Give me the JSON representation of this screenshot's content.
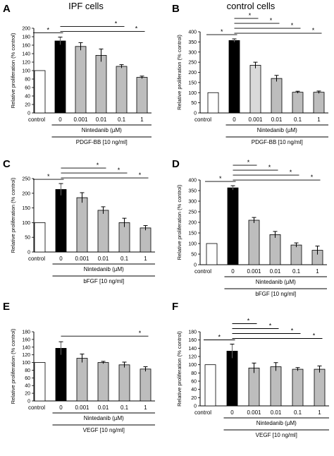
{
  "column_titles": [
    "IPF cells",
    "control cells"
  ],
  "chart_data": [
    {
      "type": "bar",
      "panel": "A",
      "categories": [
        "control",
        "0",
        "0.001",
        "0.01",
        "0.1",
        "1"
      ],
      "values": [
        100,
        170,
        157,
        136,
        110,
        84
      ],
      "errors": [
        0,
        9,
        9,
        15,
        4,
        3
      ],
      "ylim": [
        0,
        200
      ],
      "yticks": [
        0,
        20,
        40,
        60,
        80,
        100,
        120,
        140,
        160,
        180,
        200
      ],
      "ylabel": "Relative proliferation (% control)",
      "xlabel": "Nintedanib (µM)",
      "group_label": "PDGF-BB [10 ng/ml]",
      "significance": [
        [
          0,
          1
        ],
        [
          1,
          4
        ],
        [
          1,
          5
        ]
      ],
      "star": "*"
    },
    {
      "type": "bar",
      "panel": "B",
      "categories": [
        "control",
        "0",
        "0.001",
        "0.01",
        "0.1",
        "1"
      ],
      "values": [
        100,
        357,
        235,
        170,
        102,
        102
      ],
      "errors": [
        0,
        8,
        15,
        15,
        5,
        6
      ],
      "ylim": [
        0,
        400
      ],
      "yticks": [
        0,
        50,
        100,
        150,
        200,
        250,
        300,
        350,
        400
      ],
      "ylabel": "Relative proliferation (% control)",
      "xlabel": "Nintedanib (µM)",
      "group_label": "PDGF-BB [10 ng/ml]",
      "significance": [
        [
          0,
          1
        ],
        [
          1,
          2
        ],
        [
          1,
          3
        ],
        [
          1,
          4
        ],
        [
          1,
          5
        ]
      ],
      "star": "*"
    },
    {
      "type": "bar",
      "panel": "C",
      "categories": [
        "control",
        "0",
        "0.001",
        "0.01",
        "0.1",
        "1"
      ],
      "values": [
        100,
        213,
        185,
        142,
        100,
        82
      ],
      "errors": [
        0,
        20,
        17,
        12,
        15,
        8
      ],
      "ylim": [
        0,
        250
      ],
      "yticks": [
        0,
        50,
        100,
        150,
        200,
        250
      ],
      "ylabel": "Relative proliferation (% control)",
      "xlabel": "Nintedanib (µM)",
      "group_label": "bFGF [10 ng/ml]",
      "significance": [
        [
          0,
          1
        ],
        [
          1,
          3
        ],
        [
          1,
          4
        ],
        [
          1,
          5
        ]
      ],
      "star": "*"
    },
    {
      "type": "bar",
      "panel": "D",
      "categories": [
        "control",
        "0",
        "0.001",
        "0.01",
        "0.1",
        "1"
      ],
      "values": [
        100,
        363,
        210,
        142,
        93,
        68
      ],
      "errors": [
        0,
        10,
        13,
        15,
        10,
        20
      ],
      "ylim": [
        0,
        400
      ],
      "yticks": [
        0,
        50,
        100,
        150,
        200,
        250,
        300,
        350,
        400
      ],
      "ylabel": "Relative proliferation (% control)",
      "xlabel": "Nintedanib (µM)",
      "group_label": "bFGF [10 ng/ml]",
      "significance": [
        [
          0,
          1
        ],
        [
          1,
          2
        ],
        [
          1,
          3
        ],
        [
          1,
          4
        ],
        [
          1,
          5
        ]
      ],
      "star": "*"
    },
    {
      "type": "bar",
      "panel": "E",
      "categories": [
        "control",
        "0",
        "0.001",
        "0.01",
        "0.1",
        "1"
      ],
      "values": [
        100,
        137,
        111,
        100,
        94,
        83
      ],
      "errors": [
        0,
        17,
        11,
        3,
        7,
        6
      ],
      "ylim": [
        0,
        180
      ],
      "yticks": [
        0,
        20,
        40,
        60,
        80,
        100,
        120,
        140,
        160,
        180
      ],
      "ylabel": "Relative proliferation (% control)",
      "xlabel": "Nintedanib (µM)",
      "group_label": "VEGF [10 ng/ml]",
      "significance": [
        [
          1,
          5
        ]
      ],
      "star": "*"
    },
    {
      "type": "bar",
      "panel": "F",
      "categories": [
        "control",
        "0",
        "0.001",
        "0.01",
        "0.1",
        "1"
      ],
      "values": [
        100,
        133,
        92,
        95,
        89,
        89
      ],
      "errors": [
        0,
        17,
        12,
        10,
        4,
        8
      ],
      "ylim": [
        0,
        180
      ],
      "yticks": [
        0,
        20,
        40,
        60,
        80,
        100,
        120,
        140,
        160,
        180
      ],
      "ylabel": "Relative proliferation (% control)",
      "xlabel": "Nintedanib (µM)",
      "group_label": "VEGF [10 ng/ml]",
      "significance": [
        [
          0,
          1
        ],
        [
          1,
          2
        ],
        [
          1,
          3
        ],
        [
          1,
          4
        ],
        [
          1,
          5
        ]
      ],
      "star": "*"
    }
  ],
  "colors": {
    "control": "#ffffff",
    "zero": "#000000",
    "drug": "#bdbdbd",
    "drug_light": "#d9d9d9"
  }
}
